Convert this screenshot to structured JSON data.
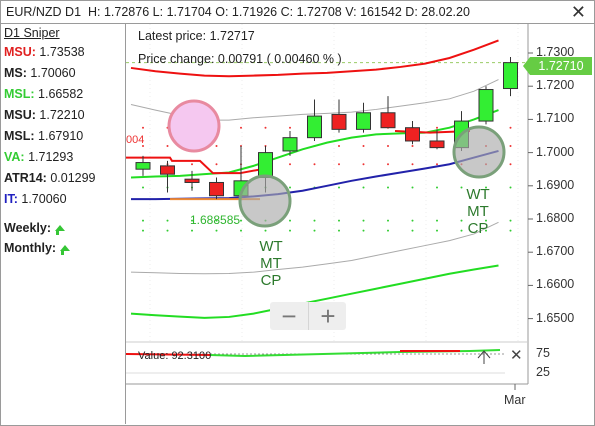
{
  "header": {
    "symbol": "EUR/NZD",
    "timeframe": "D1",
    "h_label": "H:",
    "h": "1.72876",
    "l_label": "L:",
    "l": "1.71704",
    "o_label": "O:",
    "o": "1.71926",
    "c_label": "C:",
    "c": "1.72708",
    "v_label": "V:",
    "v": "161542",
    "d_label": "D:",
    "d": "28.02.20",
    "close_glyph": "✕"
  },
  "panel": {
    "title": "D1 Sniper",
    "items": [
      {
        "label": "MSU:",
        "value": "1.73538",
        "color": "#e02020"
      },
      {
        "label": "MS:",
        "value": "1.70060",
        "color": "#222222"
      },
      {
        "label": "MSL:",
        "value": "1.66582",
        "color": "#33cc33"
      },
      {
        "label": "MSU:",
        "value": "1.72210",
        "color": "#222222"
      },
      {
        "label": "MSL:",
        "value": "1.67910",
        "color": "#222222"
      },
      {
        "label": "VA:",
        "value": "1.71293",
        "color": "#33cc33"
      },
      {
        "label": "ATR14:",
        "value": "0.01299",
        "color": "#222222"
      },
      {
        "label": "IT:",
        "value": "1.70060",
        "color": "#2020c0"
      }
    ],
    "weekly": "Weekly:",
    "monthly": "Monthly:"
  },
  "info": {
    "latest_label": "Latest price:",
    "latest": "1.72717",
    "change_label": "Price change:",
    "change": "0.00791",
    "change_pct": "( 0.00460 % )"
  },
  "annotations": {
    "fib": "1.688585",
    "red004": "004",
    "wt_left": [
      "WT",
      "MT",
      "CP"
    ],
    "wt_right": [
      "WT",
      "MT",
      "CP"
    ]
  },
  "zoom": {
    "minus": "−",
    "plus": "+"
  },
  "subpanel": {
    "value_label": "Value:",
    "value": "92.3100",
    "close": "✕",
    "levels": [
      "75",
      "25"
    ]
  },
  "price_tag": "1.72710",
  "colors": {
    "bull": "#33ee33",
    "bear": "#ee2222",
    "upper": "#ee1111",
    "lower": "#22dd22",
    "mid": "#2222aa"
  },
  "chart_data": {
    "type": "candlestick",
    "yticks": [
      "1.7300",
      "1.7200",
      "1.7100",
      "1.7000",
      "1.6900",
      "1.6800",
      "1.6700",
      "1.6600",
      "1.6500"
    ],
    "ylim": [
      1.641,
      1.7415
    ],
    "xticks": [
      "Mar"
    ],
    "candles": [
      {
        "o": 1.695,
        "h": 1.699,
        "l": 1.693,
        "c": 1.697
      },
      {
        "o": 1.696,
        "h": 1.6975,
        "l": 1.688,
        "c": 1.6935
      },
      {
        "o": 1.692,
        "h": 1.6945,
        "l": 1.6885,
        "c": 1.691
      },
      {
        "o": 1.691,
        "h": 1.6925,
        "l": 1.686,
        "c": 1.687
      },
      {
        "o": 1.687,
        "h": 1.702,
        "l": 1.686,
        "c": 1.6915
      },
      {
        "o": 1.6925,
        "h": 1.702,
        "l": 1.688,
        "c": 1.7
      },
      {
        "o": 1.7005,
        "h": 1.7065,
        "l": 1.699,
        "c": 1.7045
      },
      {
        "o": 1.7045,
        "h": 1.716,
        "l": 1.7035,
        "c": 1.711
      },
      {
        "o": 1.7115,
        "h": 1.716,
        "l": 1.706,
        "c": 1.707
      },
      {
        "o": 1.707,
        "h": 1.715,
        "l": 1.706,
        "c": 1.712
      },
      {
        "o": 1.712,
        "h": 1.717,
        "l": 1.708,
        "c": 1.7075
      },
      {
        "o": 1.7075,
        "h": 1.7095,
        "l": 1.7025,
        "c": 1.7035
      },
      {
        "o": 1.7035,
        "h": 1.707,
        "l": 1.701,
        "c": 1.7015
      },
      {
        "o": 1.7015,
        "h": 1.7125,
        "l": 1.7005,
        "c": 1.7095
      },
      {
        "o": 1.7095,
        "h": 1.72,
        "l": 1.7085,
        "c": 1.719
      },
      {
        "o": 1.7193,
        "h": 1.7288,
        "l": 1.717,
        "c": 1.7271
      }
    ],
    "series": [
      {
        "color": "#ee1111",
        "values": [
          1.7255,
          1.7245,
          1.7238,
          1.7232,
          1.723,
          1.7232,
          1.7234,
          1.7238,
          1.724,
          1.7245,
          1.725,
          1.7258,
          1.7268,
          1.7285,
          1.731,
          1.7338
        ]
      },
      {
        "color": "#aaaaaa",
        "values": [
          1.7145,
          1.7128,
          1.7112,
          1.7098,
          1.7098,
          1.7105,
          1.711,
          1.7115,
          1.7118,
          1.7122,
          1.713,
          1.714,
          1.715,
          1.7162,
          1.7185,
          1.722
        ]
      },
      {
        "color": "#22dd22",
        "values": [
          1.6925,
          1.6928,
          1.693,
          1.6935,
          1.694,
          1.696,
          1.6985,
          1.701,
          1.703,
          1.7045,
          1.7055,
          1.7058,
          1.706,
          1.7075,
          1.71,
          1.7128
        ]
      },
      {
        "color": "#2222aa",
        "values": [
          1.686,
          1.686,
          1.6861,
          1.6862,
          1.6863,
          1.6868,
          1.6875,
          1.6885,
          1.69,
          1.6915,
          1.6928,
          1.694,
          1.6952,
          1.6965,
          1.6985,
          1.7005
        ]
      },
      {
        "color": "#aaaaaa",
        "values": [
          1.664,
          1.6638,
          1.6636,
          1.6635,
          1.6636,
          1.664,
          1.6648,
          1.6655,
          1.6665,
          1.6675,
          1.669,
          1.6705,
          1.672,
          1.6735,
          1.6755,
          1.679
        ]
      },
      {
        "color": "#22dd22",
        "values": [
          1.6515,
          1.651,
          1.6506,
          1.6502,
          1.6505,
          1.6515,
          1.653,
          1.6545,
          1.656,
          1.6575,
          1.659,
          1.6605,
          1.662,
          1.6635,
          1.6648,
          1.666
        ]
      }
    ]
  }
}
